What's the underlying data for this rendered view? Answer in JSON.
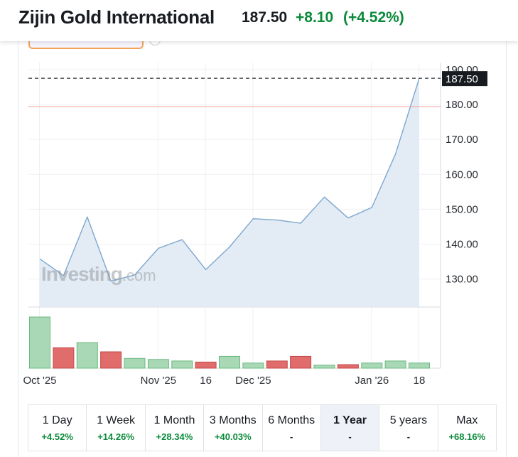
{
  "header": {
    "title": "Zijin Gold International",
    "price": "187.50",
    "change": "+8.10",
    "change_pct": "(+4.52%)"
  },
  "colors": {
    "line": "#7ea7cf",
    "area_fill": "#e3ecf4",
    "up": "#0a8a3a",
    "vol_up_fill": "#a8d8b5",
    "vol_down_fill": "#e06c6c",
    "ref_line": "#f2a0a0"
  },
  "watermark": {
    "brand": "Investing",
    "domain": ".com"
  },
  "chart_data": {
    "type": "area",
    "y_ticks": [
      "190.00",
      "180.00",
      "170.00",
      "160.00",
      "150.00",
      "140.00",
      "130.00"
    ],
    "ylim": [
      122,
      192
    ],
    "last_price_label": "187.50",
    "last_price": 187.5,
    "reference_line": 179.4,
    "x_tick_labels": [
      "Oct '25",
      "Nov '25",
      "16",
      "Dec '25",
      "Jan '26",
      "18"
    ],
    "grid": true,
    "series": [
      {
        "values": [
          135.8,
          131.0,
          147.8,
          129.4,
          131.2,
          138.8,
          141.3,
          132.7,
          139.2,
          147.3,
          146.9,
          146.0,
          153.5,
          147.5,
          150.5,
          165.8,
          187.5
        ]
      }
    ],
    "volume": [
      {
        "value": 1.0,
        "dir": "up"
      },
      {
        "value": 0.4,
        "dir": "down"
      },
      {
        "value": 0.5,
        "dir": "up"
      },
      {
        "value": 0.32,
        "dir": "down"
      },
      {
        "value": 0.19,
        "dir": "up"
      },
      {
        "value": 0.17,
        "dir": "up"
      },
      {
        "value": 0.14,
        "dir": "up"
      },
      {
        "value": 0.12,
        "dir": "down"
      },
      {
        "value": 0.23,
        "dir": "up"
      },
      {
        "value": 0.1,
        "dir": "up"
      },
      {
        "value": 0.14,
        "dir": "down"
      },
      {
        "value": 0.23,
        "dir": "down"
      },
      {
        "value": 0.06,
        "dir": "up"
      },
      {
        "value": 0.07,
        "dir": "down"
      },
      {
        "value": 0.1,
        "dir": "up"
      },
      {
        "value": 0.14,
        "dir": "up"
      },
      {
        "value": 0.1,
        "dir": "up"
      }
    ]
  },
  "periods": [
    {
      "label": "1 Day",
      "value": "+4.52%",
      "up": true,
      "active": false
    },
    {
      "label": "1 Week",
      "value": "+14.26%",
      "up": true,
      "active": false
    },
    {
      "label": "1 Month",
      "value": "+28.34%",
      "up": true,
      "active": false
    },
    {
      "label": "3 Months",
      "value": "+40.03%",
      "up": true,
      "active": false
    },
    {
      "label": "6 Months",
      "value": "-",
      "up": false,
      "active": false
    },
    {
      "label": "1 Year",
      "value": "-",
      "up": false,
      "active": true
    },
    {
      "label": "5 years",
      "value": "-",
      "up": false,
      "active": false
    },
    {
      "label": "Max",
      "value": "+68.16%",
      "up": true,
      "active": false
    }
  ]
}
